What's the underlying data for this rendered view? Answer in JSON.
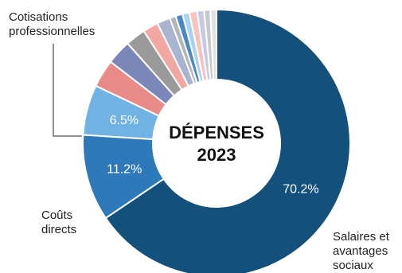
{
  "chart_data": {
    "type": "pie",
    "title": "DÉPENSES\n2023",
    "slices": [
      {
        "label": "Salaires et\navantages\nsociaux",
        "value": 70.2,
        "value_label": "70.2%",
        "color": "#14507c"
      },
      {
        "label": "Coûts\ndirects",
        "value": 11.2,
        "value_label": "11.2%",
        "color": "#2e79b9"
      },
      {
        "label": "Cotisations\nprofessionnelles",
        "value": 6.5,
        "value_label": "6.5%",
        "color": "#6fb2e3"
      },
      {
        "label": "",
        "value": 3.6,
        "value_label": "",
        "color": "#e88a88"
      },
      {
        "label": "",
        "value": 3.2,
        "value_label": "",
        "color": "#7b86b9"
      },
      {
        "label": "",
        "value": 2.6,
        "value_label": "",
        "color": "#9a9a9a"
      },
      {
        "label": "",
        "value": 2.0,
        "value_label": "",
        "color": "#f0a8a0"
      },
      {
        "label": "",
        "value": 1.7,
        "value_label": "",
        "color": "#a9b4d1"
      },
      {
        "label": "",
        "value": 0.8,
        "value_label": "",
        "color": "#b3b6b9"
      },
      {
        "label": "",
        "value": 0.9,
        "value_label": "",
        "color": "#4a8ac4"
      },
      {
        "label": "",
        "value": 0.9,
        "value_label": "",
        "color": "#a9d3f1"
      },
      {
        "label": "",
        "value": 1.0,
        "value_label": "",
        "color": "#f6c4bd"
      },
      {
        "label": "",
        "value": 0.9,
        "value_label": "",
        "color": "#c5cbe2"
      },
      {
        "label": "",
        "value": 0.8,
        "value_label": "",
        "color": "#c8c8c8"
      },
      {
        "label": "",
        "value": 0.8,
        "value_label": "",
        "color": "#dbe4ee"
      }
    ]
  }
}
